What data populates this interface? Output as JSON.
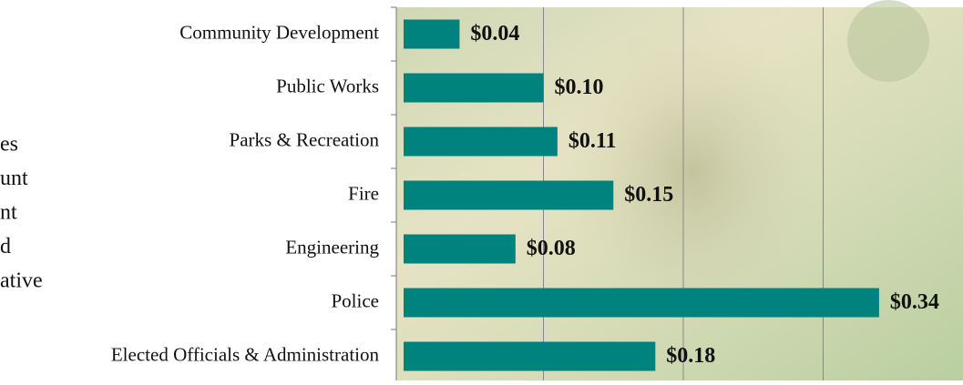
{
  "side_text": [
    "es",
    "unt",
    "nt",
    "d",
    "ative"
  ],
  "chart_data": {
    "type": "barh",
    "categories": [
      "Community Development",
      "Public Works",
      "Parks & Recreation",
      "Fire",
      "Engineering",
      "Police",
      "Elected Officials & Administration"
    ],
    "values": [
      0.04,
      0.1,
      0.11,
      0.15,
      0.08,
      0.34,
      0.18
    ],
    "value_labels": [
      "$0.04",
      "$0.10",
      "$0.11",
      "$0.15",
      "$0.08",
      "$0.34",
      "$0.18"
    ],
    "color": "#00827f",
    "xlim": [
      0,
      0.4
    ],
    "xticks": [
      0,
      0.1,
      0.2,
      0.3
    ],
    "grid": true
  }
}
